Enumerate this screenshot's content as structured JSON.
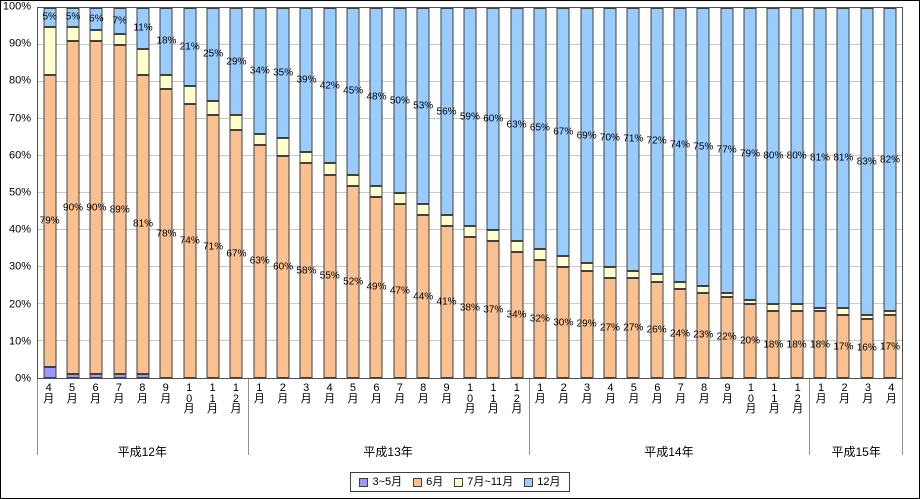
{
  "figure": {
    "background": "#ffffff",
    "border_color": "#000000",
    "axis_color": "#505050",
    "gridline_color": "#c9c9c9"
  },
  "chart_data": {
    "type": "bar",
    "variant": "stacked-100-percent-column",
    "title": "",
    "xlabel": "",
    "ylabel": "",
    "ylim": [
      0,
      100
    ],
    "grid": true,
    "legend_position": "bottom",
    "ytick_labels": [
      "0%",
      "10%",
      "20%",
      "30%",
      "40%",
      "50%",
      "60%",
      "70%",
      "80%",
      "90%",
      "100%"
    ],
    "categories": [
      "4月",
      "5月",
      "6月",
      "7月",
      "8月",
      "9月",
      "10月",
      "11月",
      "12月",
      "1月",
      "2月",
      "3月",
      "4月",
      "5月",
      "6月",
      "7月",
      "8月",
      "9月",
      "10月",
      "11月",
      "12月",
      "1月",
      "2月",
      "3月",
      "4月",
      "5月",
      "6月",
      "7月",
      "8月",
      "9月",
      "10月",
      "11月",
      "12月",
      "1月",
      "2月",
      "3月",
      "4月"
    ],
    "year_groups": [
      {
        "label": "平成12年",
        "start": 0,
        "count": 9
      },
      {
        "label": "平成13年",
        "start": 9,
        "count": 12
      },
      {
        "label": "平成14年",
        "start": 21,
        "count": 12
      },
      {
        "label": "平成15年",
        "start": 33,
        "count": 4
      }
    ],
    "series": [
      {
        "name": "3~5月",
        "color": "#9999FF",
        "show_labels": false,
        "values": [
          3,
          1,
          1,
          1,
          1,
          0,
          0,
          0,
          0,
          0,
          0,
          0,
          0,
          0,
          0,
          0,
          0,
          0,
          0,
          0,
          0,
          0,
          0,
          0,
          0,
          0,
          0,
          0,
          0,
          0,
          0,
          0,
          0,
          0,
          0,
          0,
          0
        ]
      },
      {
        "name": "6月",
        "color": "#FAC090",
        "show_labels": true,
        "values": [
          79,
          90,
          90,
          89,
          81,
          78,
          74,
          71,
          67,
          63,
          60,
          58,
          55,
          52,
          49,
          47,
          44,
          41,
          38,
          37,
          34,
          32,
          30,
          29,
          27,
          27,
          26,
          24,
          23,
          22,
          20,
          18,
          18,
          18,
          17,
          16,
          17
        ]
      },
      {
        "name": "7月~11月",
        "color": "#FFFFCC",
        "show_labels": false,
        "values": [
          13,
          4,
          3,
          3,
          7,
          4,
          5,
          4,
          4,
          3,
          5,
          3,
          3,
          3,
          3,
          3,
          3,
          3,
          3,
          3,
          3,
          3,
          3,
          2,
          3,
          2,
          2,
          2,
          2,
          1,
          1,
          2,
          2,
          1,
          2,
          1,
          1
        ]
      },
      {
        "name": "12月",
        "color": "#99CCFF",
        "show_labels": true,
        "values": [
          5,
          5,
          6,
          7,
          11,
          18,
          21,
          25,
          29,
          34,
          35,
          39,
          42,
          45,
          48,
          50,
          53,
          56,
          59,
          60,
          63,
          65,
          67,
          69,
          70,
          71,
          72,
          74,
          75,
          77,
          79,
          80,
          80,
          81,
          81,
          83,
          82
        ]
      }
    ]
  }
}
